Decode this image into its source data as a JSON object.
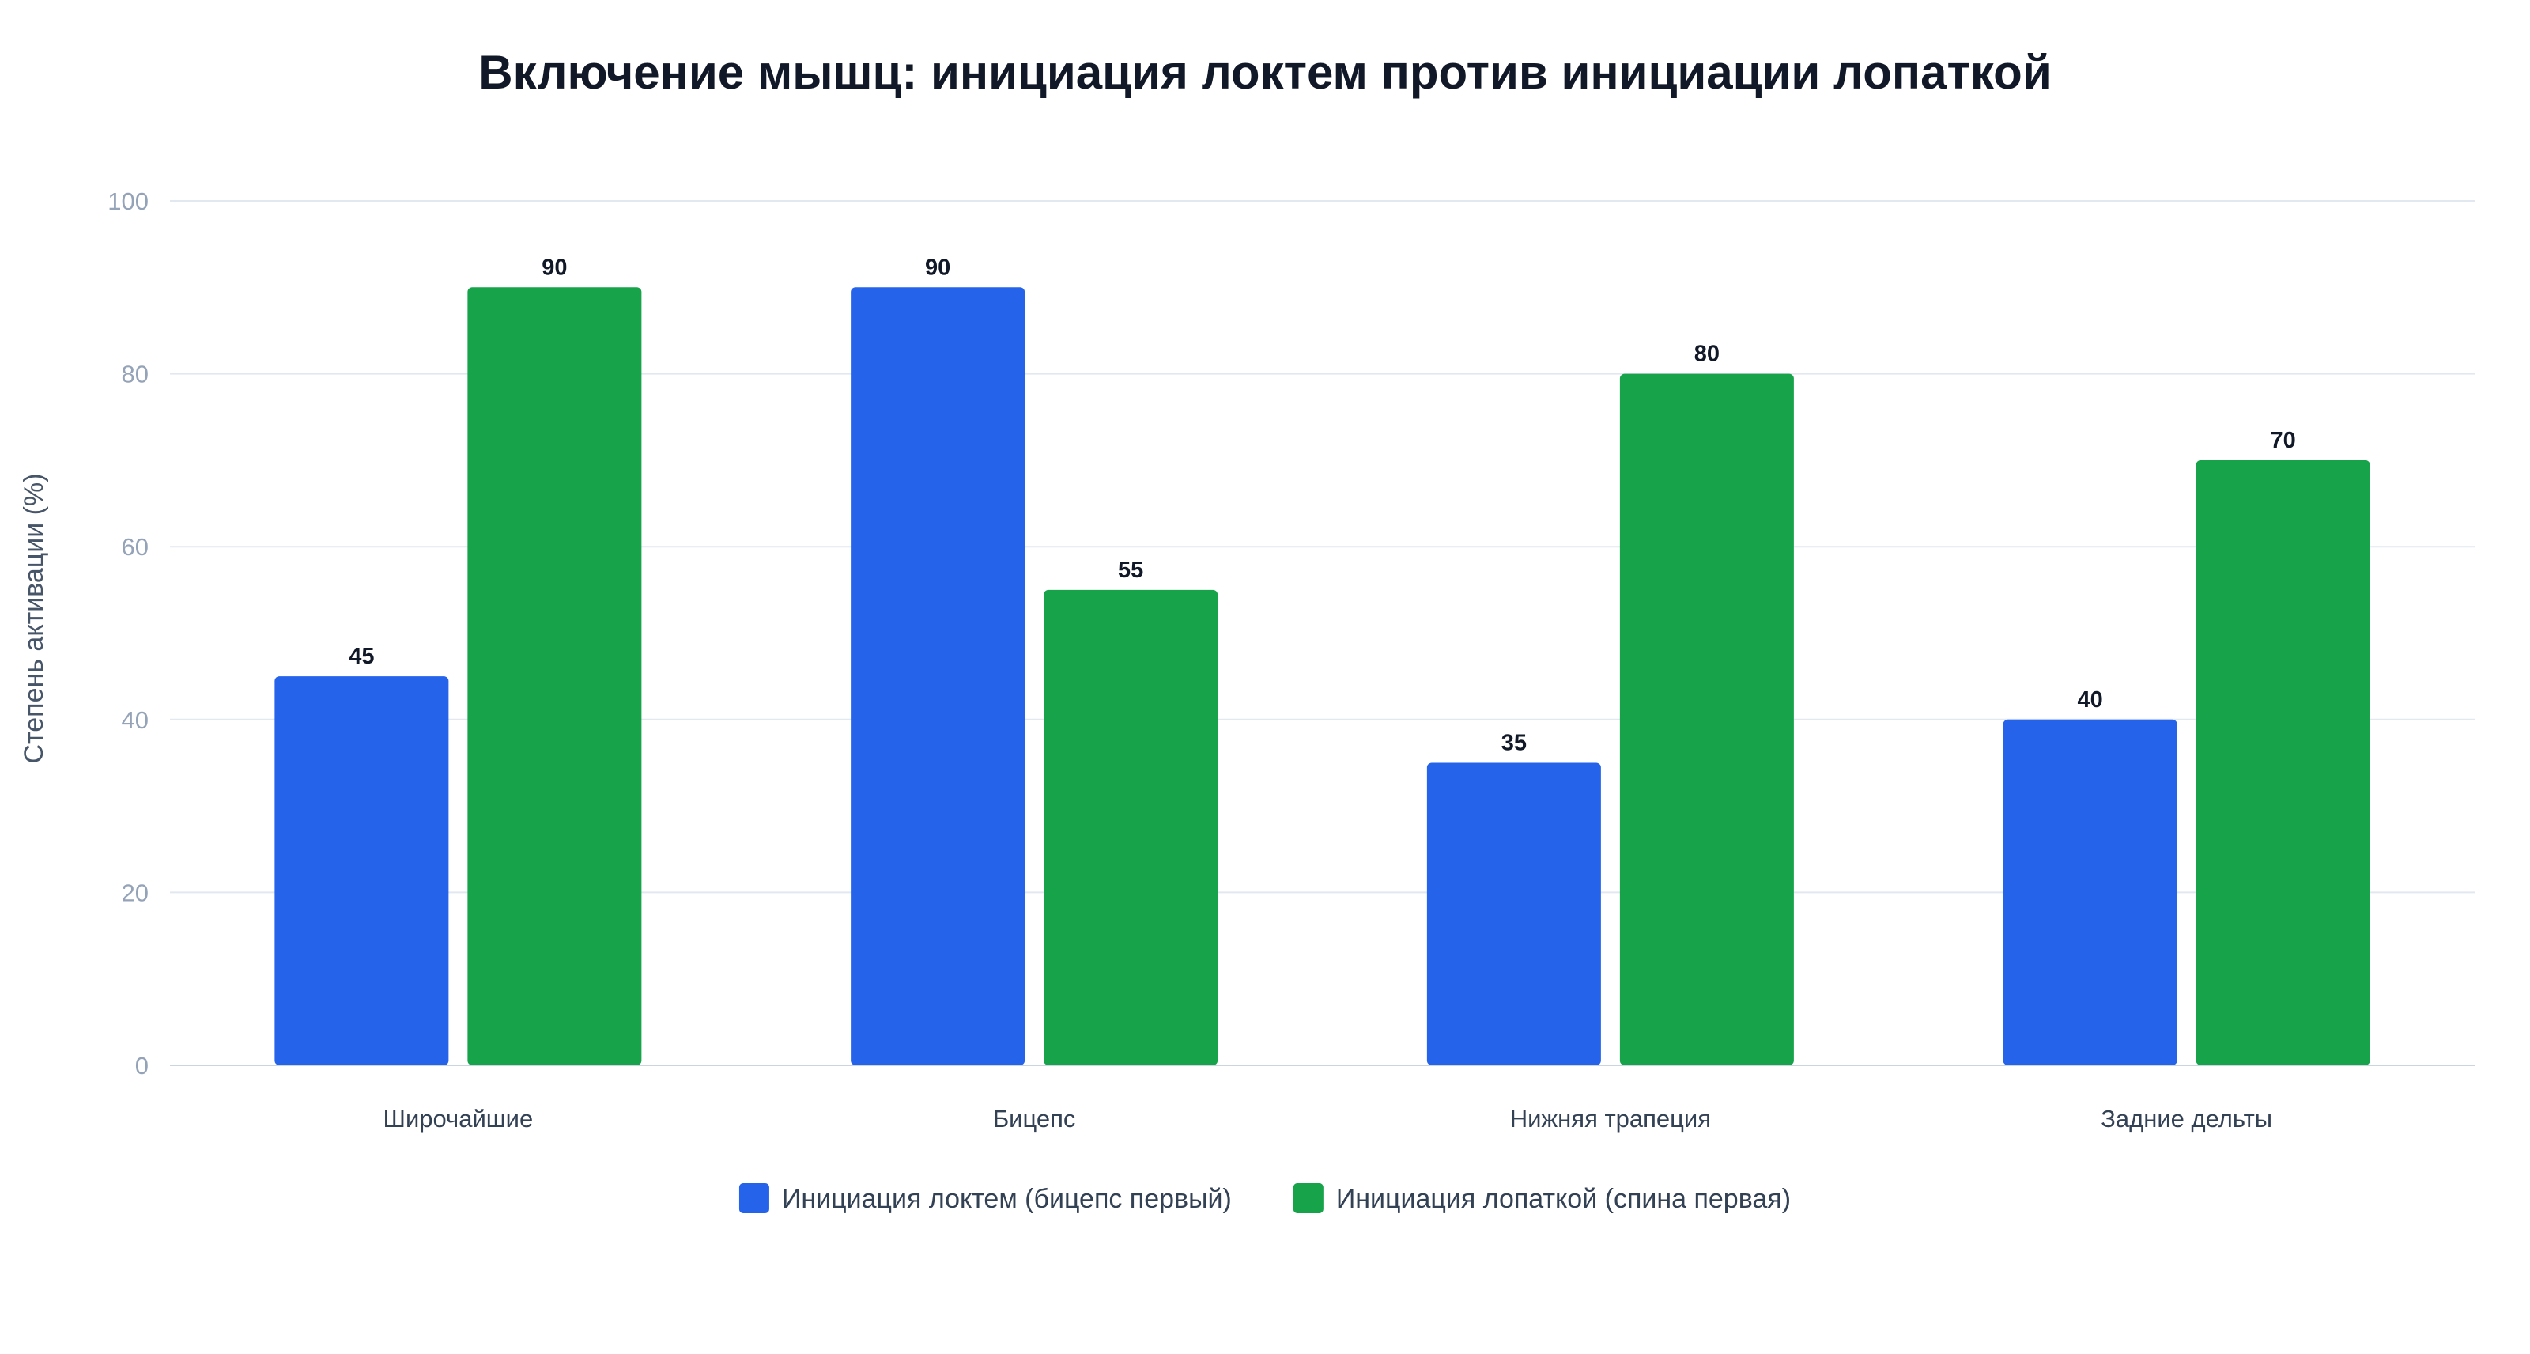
{
  "chart_data": {
    "type": "bar",
    "title": "Включение мышц: инициация локтем против инициации лопаткой",
    "xlabel": "",
    "ylabel": "Степень активации (%)",
    "ylim": [
      0,
      100
    ],
    "yticks": [
      0,
      20,
      40,
      60,
      80,
      100
    ],
    "categories": [
      "Широчайшие",
      "Бицепс",
      "Нижняя трапеция",
      "Задние дельты"
    ],
    "series": [
      {
        "name": "Инициация локтем (бицепс первый)",
        "color": "#2563eb",
        "values": [
          45,
          90,
          35,
          40
        ]
      },
      {
        "name": "Инициация лопаткой (спина первая)",
        "color": "#16a34a",
        "values": [
          90,
          55,
          80,
          70
        ]
      }
    ],
    "grid": true,
    "data_labels": true,
    "legend_position": "bottom-center"
  }
}
